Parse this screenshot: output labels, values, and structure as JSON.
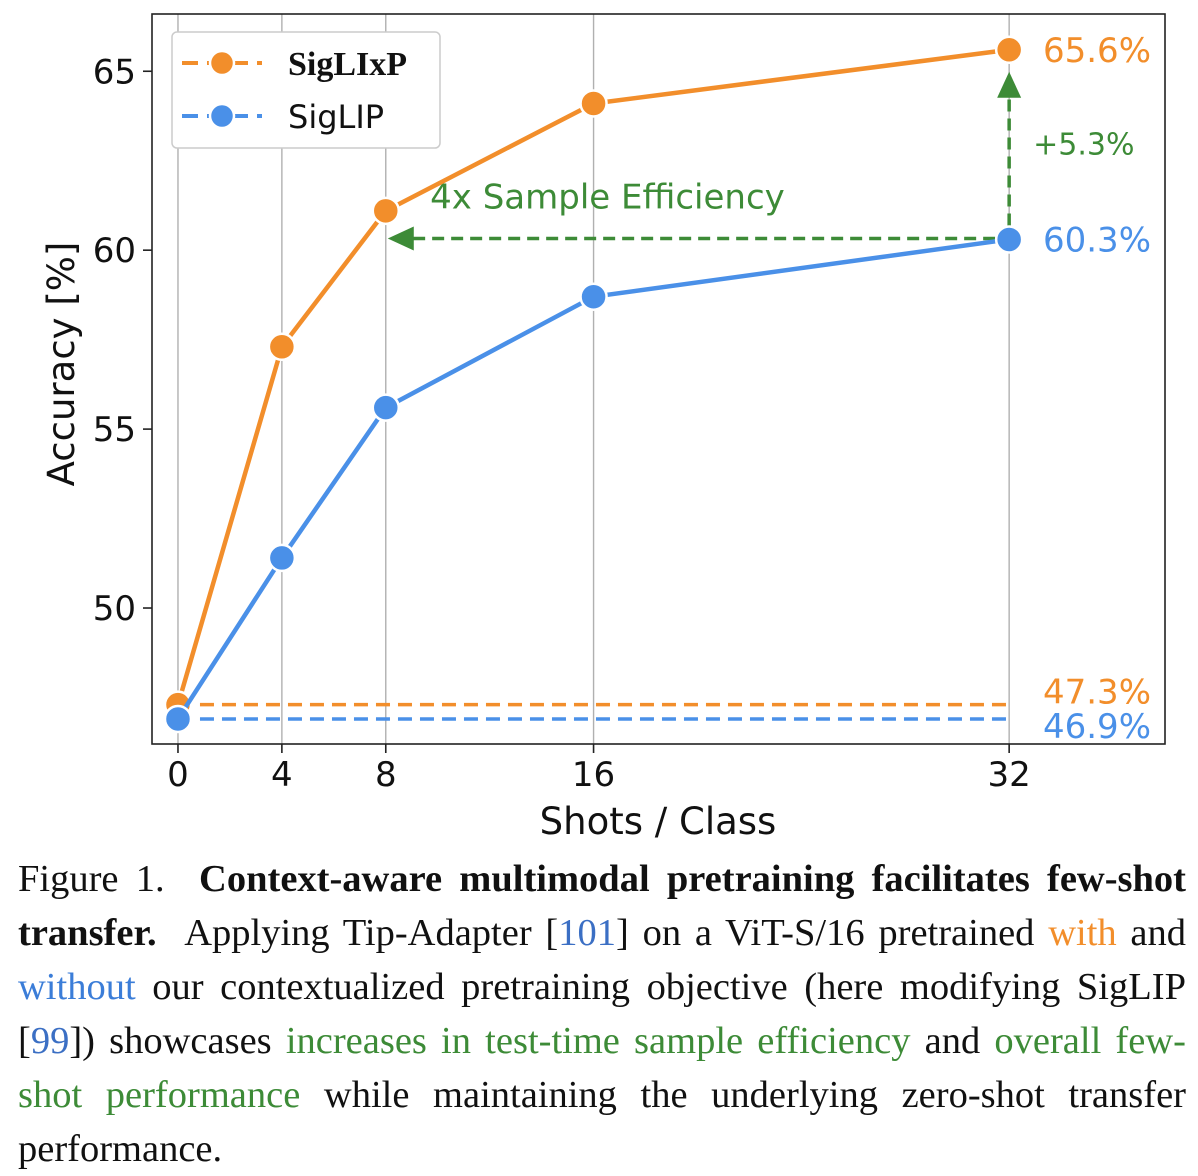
{
  "colors": {
    "siglixp": "#f28e2b",
    "siglip": "#4a90e8",
    "annotation": "#3d8b37",
    "grid": "#b0b0b0"
  },
  "chart_data": {
    "type": "line",
    "x": [
      0,
      4,
      8,
      16,
      32
    ],
    "x_ticks": [
      "0",
      "4",
      "8",
      "16",
      "32"
    ],
    "y_ticks": [
      "50",
      "55",
      "60",
      "65"
    ],
    "ylim": [
      46.2,
      66.6
    ],
    "xlim": [
      -1,
      38
    ],
    "xlabel": "Shots / Class",
    "ylabel": "Accuracy [%]",
    "grid": "vertical lines at x ticks",
    "legend_position": "top-left",
    "series": [
      {
        "name": "SigLIxP",
        "values": [
          47.3,
          57.3,
          61.1,
          64.1,
          65.6
        ]
      },
      {
        "name": "SigLIP",
        "values": [
          46.9,
          51.4,
          55.6,
          58.7,
          60.3
        ]
      }
    ],
    "baselines": [
      {
        "series": "SigLIxP",
        "value": 47.3,
        "label": "47.3%"
      },
      {
        "series": "SigLIP",
        "value": 46.9,
        "label": "46.9%"
      }
    ],
    "endpoint_labels": [
      {
        "series": "SigLIxP",
        "value": 65.6,
        "label": "65.6%"
      },
      {
        "series": "SigLIP",
        "value": 60.3,
        "label": "60.3%"
      }
    ],
    "annotations": {
      "efficiency_text": "4x Sample Efficiency",
      "efficiency_from_x": 32,
      "efficiency_to_x": 8,
      "efficiency_y": 60.3,
      "gain_text": "+5.3%",
      "gain_x": 32,
      "gain_from_y": 60.3,
      "gain_to_y": 65.6
    }
  },
  "caption": {
    "figure_label": "Figure 1.",
    "bold_title": "Context-aware multimodal pretraining facilitates few-shot transfer.",
    "text_1": "Applying Tip-Adapter [",
    "ref_1": "101",
    "text_2": "] on a ViT-S/16 pretrained ",
    "with": "with",
    "text_3": " and ",
    "without": "without",
    "text_4": " our contextualized pretraining objective (here modifying SigLIP [",
    "ref_2": "99",
    "text_5": "]) showcases ",
    "green_1": "increases in test-time sample efficiency",
    "text_6": " and ",
    "green_2": "overall few-shot performance",
    "text_7": " while maintaining the underlying zero-shot transfer performance."
  }
}
